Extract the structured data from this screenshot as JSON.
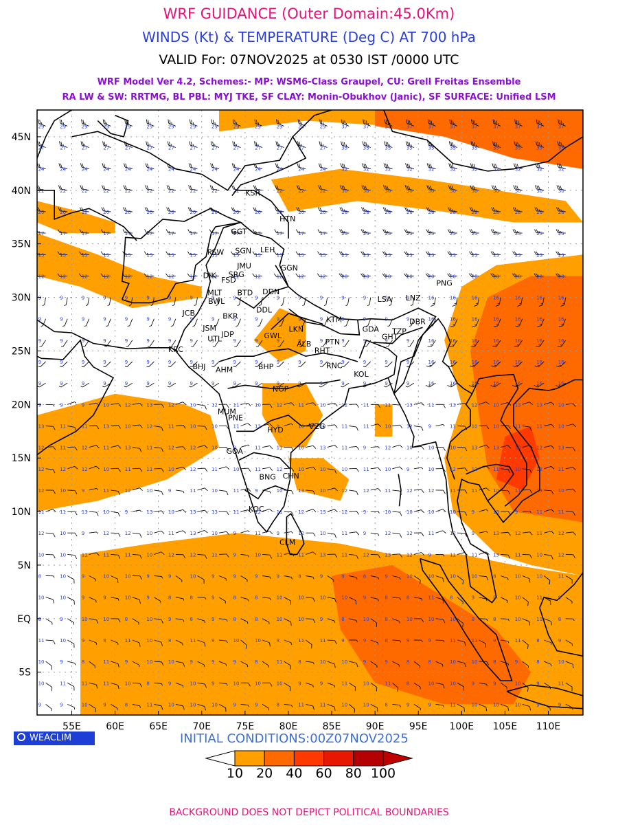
{
  "header": {
    "title": "WRF GUIDANCE (Outer Domain:45.0Km)",
    "subtitle": "WINDS (Kt) & TEMPERATURE (Deg C) AT 700 hPa",
    "valid": "VALID For: 07NOV2025 at 0530 IST /0000 UTC",
    "model_line1": "WRF Model Ver 4.2, Schemes:- MP: WSM6-Class Graupel, CU: Grell Freitas Ensemble",
    "model_line2": "RA LW & SW: RRTMG, BL PBL: MYJ TKE, SF CLAY: Monin-Obukhov (Janic), SF SURFACE: Unified LSM"
  },
  "colors": {
    "title": "#e8137a",
    "subtitle": "#2a3fd8",
    "model": "#8a10d8",
    "init": "#3c6fd8",
    "footer": "#e8137a",
    "barb_label": "#2a3fd8",
    "shade_10_20": "#ff9f00",
    "shade_20_40": "#ff6a00",
    "shade_40_60": "#ff3a00",
    "shade_60_80": "#e81800",
    "shade_80_100": "#b40000"
  },
  "map": {
    "lat_labels": [
      "45N",
      "40N",
      "35N",
      "30N",
      "25N",
      "20N",
      "15N",
      "10N",
      "5N",
      "EQ",
      "5S"
    ],
    "lon_labels": [
      "55E",
      "60E",
      "65E",
      "70E",
      "75E",
      "80E",
      "85E",
      "90E",
      "95E",
      "100E",
      "105E",
      "110E"
    ],
    "stations": [
      {
        "code": "KSR",
        "lon": 75.9,
        "lat": 39.5
      },
      {
        "code": "HTN",
        "lon": 79.9,
        "lat": 37.1
      },
      {
        "code": "GGT",
        "lon": 74.3,
        "lat": 35.9
      },
      {
        "code": "PSW",
        "lon": 71.6,
        "lat": 34.0
      },
      {
        "code": "SGN",
        "lon": 74.8,
        "lat": 34.1
      },
      {
        "code": "LEH",
        "lon": 77.6,
        "lat": 34.2
      },
      {
        "code": "JMU",
        "lon": 74.9,
        "lat": 32.7
      },
      {
        "code": "DIK",
        "lon": 70.9,
        "lat": 31.8
      },
      {
        "code": "SRG",
        "lon": 74.0,
        "lat": 31.9
      },
      {
        "code": "FSD",
        "lon": 73.1,
        "lat": 31.4
      },
      {
        "code": "GGN",
        "lon": 80.1,
        "lat": 32.5
      },
      {
        "code": "MLT",
        "lon": 71.5,
        "lat": 30.2
      },
      {
        "code": "BTD",
        "lon": 75.0,
        "lat": 30.2
      },
      {
        "code": "DDN",
        "lon": 78.0,
        "lat": 30.3
      },
      {
        "code": "BWL",
        "lon": 71.7,
        "lat": 29.4
      },
      {
        "code": "JCB",
        "lon": 68.5,
        "lat": 28.3
      },
      {
        "code": "BKR",
        "lon": 73.3,
        "lat": 28.0
      },
      {
        "code": "DDL",
        "lon": 77.2,
        "lat": 28.6
      },
      {
        "code": "JSM",
        "lon": 70.9,
        "lat": 26.9
      },
      {
        "code": "JDP",
        "lon": 73.0,
        "lat": 26.3
      },
      {
        "code": "UTL",
        "lon": 71.5,
        "lat": 25.9
      },
      {
        "code": "GWL",
        "lon": 78.2,
        "lat": 26.2
      },
      {
        "code": "LKN",
        "lon": 80.9,
        "lat": 26.8
      },
      {
        "code": "ALB",
        "lon": 81.8,
        "lat": 25.4
      },
      {
        "code": "PTN",
        "lon": 85.1,
        "lat": 25.6
      },
      {
        "code": "RHT",
        "lon": 83.9,
        "lat": 24.8
      },
      {
        "code": "KTM",
        "lon": 85.3,
        "lat": 27.7
      },
      {
        "code": "LSA",
        "lon": 91.1,
        "lat": 29.6
      },
      {
        "code": "LNZ",
        "lon": 94.4,
        "lat": 29.7
      },
      {
        "code": "PNG",
        "lon": 98.0,
        "lat": 31.1
      },
      {
        "code": "GHT",
        "lon": 91.7,
        "lat": 26.1
      },
      {
        "code": "GDA",
        "lon": 89.5,
        "lat": 26.8
      },
      {
        "code": "TZP",
        "lon": 92.8,
        "lat": 26.6
      },
      {
        "code": "DBR",
        "lon": 94.9,
        "lat": 27.5
      },
      {
        "code": "KRC",
        "lon": 67.0,
        "lat": 24.9
      },
      {
        "code": "BHJ",
        "lon": 69.7,
        "lat": 23.3
      },
      {
        "code": "AHM",
        "lon": 72.6,
        "lat": 23.0
      },
      {
        "code": "BHP",
        "lon": 77.4,
        "lat": 23.3
      },
      {
        "code": "RNC",
        "lon": 85.3,
        "lat": 23.4
      },
      {
        "code": "KOL",
        "lon": 88.4,
        "lat": 22.6
      },
      {
        "code": "NGP",
        "lon": 79.1,
        "lat": 21.2
      },
      {
        "code": "MUM",
        "lon": 72.9,
        "lat": 19.1
      },
      {
        "code": "PNE",
        "lon": 73.9,
        "lat": 18.5
      },
      {
        "code": "HYD",
        "lon": 78.5,
        "lat": 17.4
      },
      {
        "code": "VZG",
        "lon": 83.3,
        "lat": 17.7
      },
      {
        "code": "GOA",
        "lon": 73.8,
        "lat": 15.4
      },
      {
        "code": "BNG",
        "lon": 77.6,
        "lat": 13.0
      },
      {
        "code": "CHN",
        "lon": 80.3,
        "lat": 13.1
      },
      {
        "code": "KOC",
        "lon": 76.3,
        "lat": 10.0
      },
      {
        "code": "CLM",
        "lon": 79.9,
        "lat": 6.9
      }
    ]
  },
  "bottom": {
    "badge": "WEACLIM",
    "init": "INITIAL CONDITIONS:00Z07NOV2025",
    "legend_ticks": [
      "10",
      "20",
      "40",
      "60",
      "80",
      "100"
    ],
    "footer": "BACKGROUND DOES NOT DEPICT POLITICAL BOUNDARIES"
  }
}
